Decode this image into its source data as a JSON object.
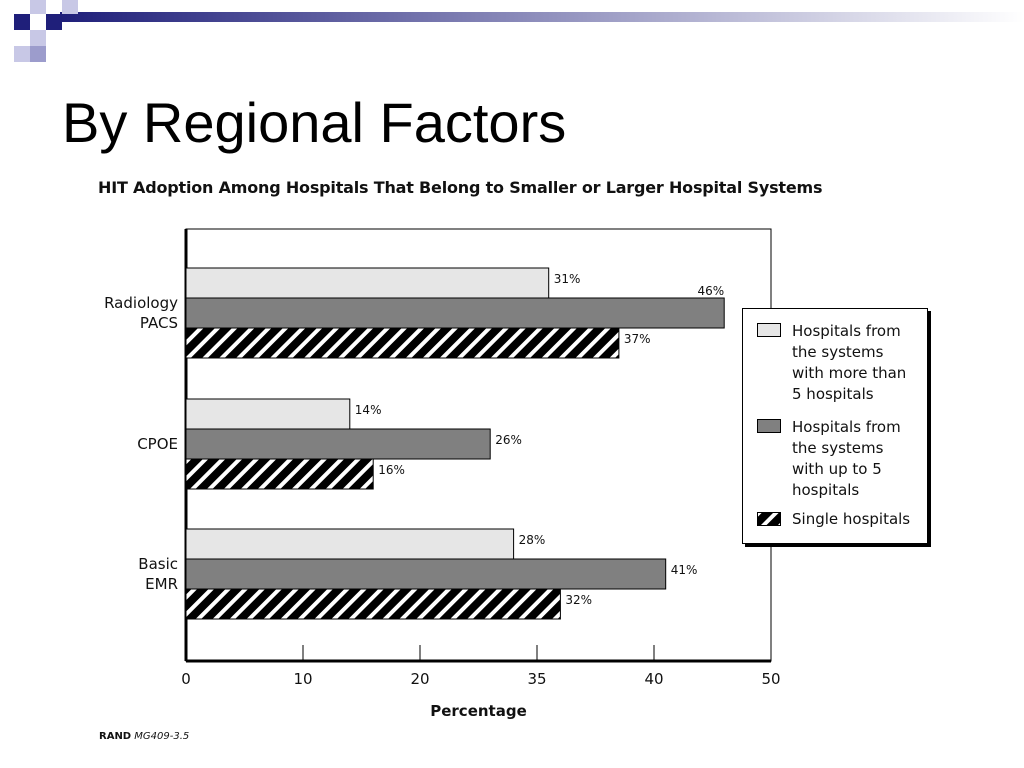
{
  "slide": {
    "title": "By Regional Factors"
  },
  "chart_data": {
    "type": "bar",
    "orientation": "horizontal",
    "title": "HIT Adoption Among Hospitals That Belong to Smaller or Larger Hospital Systems",
    "xlabel": "Percentage",
    "ylabel": "",
    "categories": [
      "Radiology\nPACS",
      "CPOE",
      "Basic\nEMR"
    ],
    "x_ticks": [
      "0",
      "10",
      "20",
      "35",
      "40",
      "50"
    ],
    "xlim": [
      0,
      50
    ],
    "series": [
      {
        "name": "Hospitals from the systems with more than 5 hospitals",
        "values": [
          31,
          14,
          28
        ],
        "labels": [
          "31%",
          "14%",
          "28%"
        ],
        "color": "#e6e6e6",
        "pattern": "solid"
      },
      {
        "name": "Hospitals from the systems with up to 5 hospitals",
        "values": [
          46,
          26,
          41
        ],
        "labels": [
          "46%",
          "26%",
          "41%"
        ],
        "color": "#808080",
        "pattern": "solid"
      },
      {
        "name": "Single hospitals",
        "values": [
          37,
          16,
          32
        ],
        "labels": [
          "37%",
          "16%",
          "32%"
        ],
        "color": "#000000",
        "pattern": "hatch"
      }
    ],
    "legend_position": "right",
    "grid": false
  },
  "legend": {
    "items": [
      {
        "label": "Hospitals from\nthe systems\nwith more than\n5 hospitals"
      },
      {
        "label": "Hospitals from\nthe systems\nwith up to 5\nhospitals"
      },
      {
        "label": "Single hospitals"
      }
    ]
  },
  "source": {
    "prefix": "RAND",
    "code": "MG409-3.5"
  },
  "theme": {
    "deco_navy": "#1f1f7a",
    "deco_lavender": "#9c9ccc"
  }
}
